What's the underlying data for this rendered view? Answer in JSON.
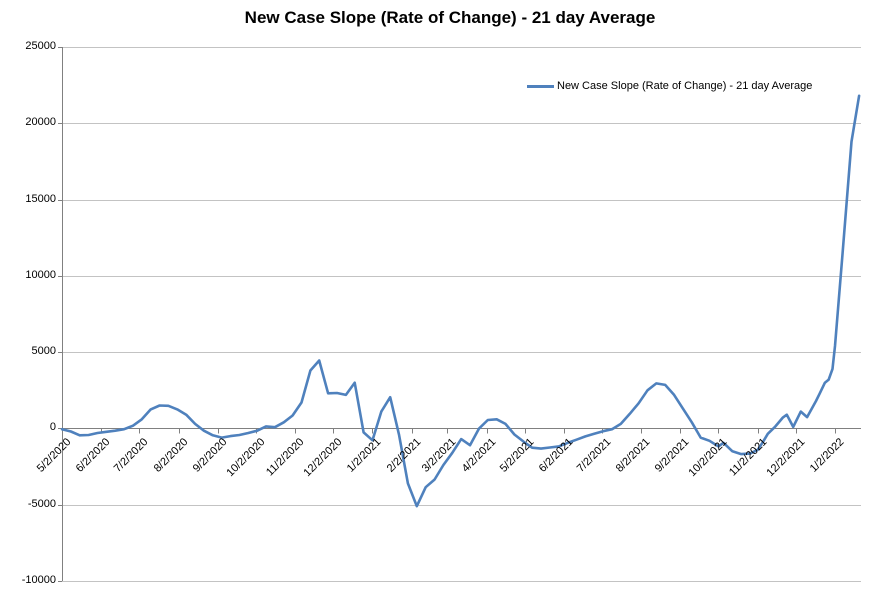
{
  "title": "New Case Slope (Rate of Change) - 21 day Average",
  "legend": {
    "label": "New Case Slope (Rate of Change) - 21 day Average"
  },
  "colors": {
    "line": "#4F81BD",
    "gridline": "#C3C3C3",
    "axis": "#808080",
    "text": "#000000",
    "background": "#FFFFFF"
  },
  "chart_data": {
    "type": "line",
    "title": "New Case Slope (Rate of Change) - 21 day Average",
    "series_name": "New Case Slope (Rate of Change) - 21 day Average",
    "xlabel": "",
    "ylabel": "",
    "grid": "horizontal",
    "legend_position": "top-right-inside",
    "ylim": [
      -10000,
      25000
    ],
    "y_ticks": [
      -10000,
      -5000,
      0,
      5000,
      10000,
      15000,
      20000,
      25000
    ],
    "x_tick_labels": [
      "5/2/2020",
      "6/2/2020",
      "7/2/2020",
      "8/2/2020",
      "9/2/2020",
      "10/2/2020",
      "11/2/2020",
      "12/2/2020",
      "1/2/2021",
      "2/2/2021",
      "3/2/2021",
      "4/2/2021",
      "5/2/2021",
      "6/2/2021",
      "7/2/2021",
      "8/2/2021",
      "9/2/2021",
      "10/2/2021",
      "11/2/2021",
      "12/2/2021",
      "1/2/2022"
    ],
    "x_axis_start": "5/2/2020",
    "x_axis_end": "1/22/2022",
    "points": [
      [
        "5/2/2020",
        -50
      ],
      [
        "5/9/2020",
        -200
      ],
      [
        "5/16/2020",
        -450
      ],
      [
        "5/23/2020",
        -430
      ],
      [
        "5/30/2020",
        -300
      ],
      [
        "6/6/2020",
        -220
      ],
      [
        "6/13/2020",
        -150
      ],
      [
        "6/20/2020",
        -50
      ],
      [
        "6/27/2020",
        180
      ],
      [
        "7/4/2020",
        600
      ],
      [
        "7/11/2020",
        1250
      ],
      [
        "7/18/2020",
        1500
      ],
      [
        "7/25/2020",
        1480
      ],
      [
        "8/1/2020",
        1250
      ],
      [
        "8/8/2020",
        900
      ],
      [
        "8/15/2020",
        300
      ],
      [
        "8/22/2020",
        -150
      ],
      [
        "8/29/2020",
        -450
      ],
      [
        "9/5/2020",
        -600
      ],
      [
        "9/12/2020",
        -500
      ],
      [
        "9/19/2020",
        -430
      ],
      [
        "9/26/2020",
        -300
      ],
      [
        "10/3/2020",
        -150
      ],
      [
        "10/10/2020",
        130
      ],
      [
        "10/17/2020",
        80
      ],
      [
        "10/24/2020",
        400
      ],
      [
        "10/31/2020",
        850
      ],
      [
        "11/7/2020",
        1700
      ],
      [
        "11/14/2020",
        3800
      ],
      [
        "11/21/2020",
        4450
      ],
      [
        "11/28/2020",
        2300
      ],
      [
        "12/5/2020",
        2320
      ],
      [
        "12/12/2020",
        2200
      ],
      [
        "12/19/2020",
        3000
      ],
      [
        "12/26/2020",
        -260
      ],
      [
        "1/2/2021",
        -780
      ],
      [
        "1/9/2021",
        1100
      ],
      [
        "1/16/2021",
        2050
      ],
      [
        "1/23/2021",
        -440
      ],
      [
        "1/30/2021",
        -3600
      ],
      [
        "2/6/2021",
        -5100
      ],
      [
        "2/13/2021",
        -3850
      ],
      [
        "2/20/2021",
        -3350
      ],
      [
        "2/27/2021",
        -2400
      ],
      [
        "3/6/2021",
        -1600
      ],
      [
        "3/13/2021",
        -700
      ],
      [
        "3/20/2021",
        -1100
      ],
      [
        "3/27/2021",
        -20
      ],
      [
        "4/3/2021",
        550
      ],
      [
        "4/10/2021",
        600
      ],
      [
        "4/17/2021",
        300
      ],
      [
        "4/24/2021",
        -400
      ],
      [
        "5/1/2021",
        -850
      ],
      [
        "5/8/2021",
        -1260
      ],
      [
        "5/15/2021",
        -1320
      ],
      [
        "5/22/2021",
        -1250
      ],
      [
        "5/29/2021",
        -1180
      ],
      [
        "6/5/2021",
        -950
      ],
      [
        "6/12/2021",
        -740
      ],
      [
        "6/19/2021",
        -520
      ],
      [
        "6/26/2021",
        -350
      ],
      [
        "7/3/2021",
        -180
      ],
      [
        "7/10/2021",
        -50
      ],
      [
        "7/17/2021",
        300
      ],
      [
        "7/24/2021",
        950
      ],
      [
        "7/31/2021",
        1650
      ],
      [
        "8/7/2021",
        2500
      ],
      [
        "8/14/2021",
        2950
      ],
      [
        "8/21/2021",
        2850
      ],
      [
        "8/28/2021",
        2200
      ],
      [
        "9/4/2021",
        1300
      ],
      [
        "9/11/2021",
        400
      ],
      [
        "9/18/2021",
        -600
      ],
      [
        "9/25/2021",
        -810
      ],
      [
        "10/2/2021",
        -1180
      ],
      [
        "10/6/2021",
        -940
      ],
      [
        "10/13/2021",
        -1500
      ],
      [
        "10/20/2021",
        -1680
      ],
      [
        "10/27/2021",
        -1650
      ],
      [
        "11/2/2021",
        -1400
      ],
      [
        "11/6/2021",
        -900
      ],
      [
        "11/10/2021",
        -350
      ],
      [
        "11/16/2021",
        130
      ],
      [
        "11/22/2021",
        720
      ],
      [
        "11/25/2021",
        900
      ],
      [
        "11/30/2021",
        100
      ],
      [
        "12/6/2021",
        1100
      ],
      [
        "12/11/2021",
        740
      ],
      [
        "12/18/2021",
        1800
      ],
      [
        "12/21/2021",
        2300
      ],
      [
        "12/25/2021",
        3000
      ],
      [
        "12/28/2021",
        3200
      ],
      [
        "12/31/2021",
        3900
      ],
      [
        "1/2/2022",
        5400
      ],
      [
        "1/8/2022",
        11500
      ],
      [
        "1/15/2022",
        18800
      ],
      [
        "1/21/2022",
        21800
      ]
    ]
  }
}
